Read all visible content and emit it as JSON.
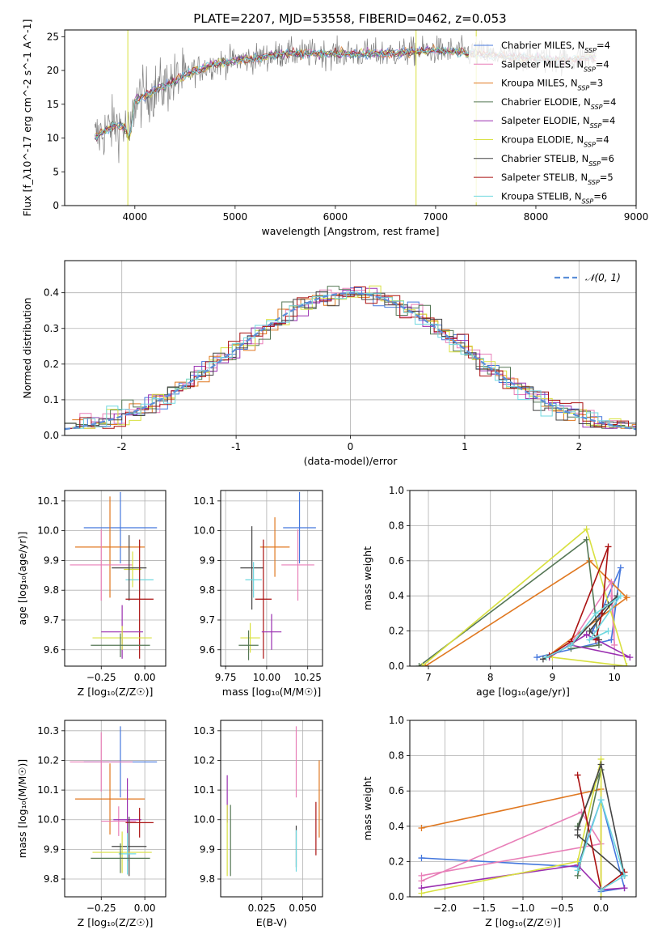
{
  "title": "PLATE=2207, MJD=53558, FIBERID=0462, z=0.053",
  "colors": {
    "chabrier_miles": "#4477dd",
    "salpeter_miles": "#e87fb8",
    "kroupa_miles": "#e07820",
    "chabrier_elodie": "#557755",
    "salpeter_elodie": "#9a2fb0",
    "kroupa_elodie": "#d8e040",
    "chabrier_stelib": "#444444",
    "salpeter_stelib": "#aa1111",
    "kroupa_stelib": "#70d8e0",
    "data": "#808080",
    "normal": "#5b8ed8"
  },
  "chart_data": [
    {
      "id": "spectrum",
      "type": "line",
      "xlabel": "wavelength [Angstrom, rest frame]",
      "ylabel": "Flux [f_λ10^-17 erg cm^-2 s^-1 A^-1]",
      "xlim": [
        3300,
        9000
      ],
      "ylim": [
        0,
        26
      ],
      "xticks": [
        4000,
        5000,
        6000,
        7000,
        8000,
        9000
      ],
      "yticks": [
        0,
        5,
        10,
        15,
        20,
        25
      ],
      "legend_position": "right",
      "legend": [
        {
          "key": "chabrier_miles",
          "label": "Chabrier MILES, N",
          "sub": "SSP",
          "n": "=4"
        },
        {
          "key": "salpeter_miles",
          "label": "Salpeter MILES, N",
          "sub": "SSP",
          "n": "=4"
        },
        {
          "key": "kroupa_miles",
          "label": "Kroupa MILES, N",
          "sub": "SSP",
          "n": "=3"
        },
        {
          "key": "chabrier_elodie",
          "label": "Chabrier ELODIE, N",
          "sub": "SSP",
          "n": "=4"
        },
        {
          "key": "salpeter_elodie",
          "label": "Salpeter ELODIE, N",
          "sub": "SSP",
          "n": "=4"
        },
        {
          "key": "kroupa_elodie",
          "label": "Kroupa ELODIE, N",
          "sub": "SSP",
          "n": "=4"
        },
        {
          "key": "chabrier_stelib",
          "label": "Chabrier STELIB, N",
          "sub": "SSP",
          "n": "=6"
        },
        {
          "key": "salpeter_stelib",
          "label": "Salpeter STELIB, N",
          "sub": "SSP",
          "n": "=5"
        },
        {
          "key": "kroupa_stelib",
          "label": "Kroupa STELIB, N",
          "sub": "SSP",
          "n": "=6"
        }
      ],
      "continuum": [
        [
          3600,
          10
        ],
        [
          3700,
          11
        ],
        [
          3800,
          12
        ],
        [
          3900,
          11.5
        ],
        [
          3950,
          10
        ],
        [
          4000,
          15.5
        ],
        [
          4200,
          17
        ],
        [
          4400,
          18.5
        ],
        [
          4600,
          20
        ],
        [
          4800,
          21
        ],
        [
          5000,
          21.5
        ],
        [
          5200,
          21.8
        ],
        [
          5500,
          22.5
        ],
        [
          6000,
          22.5
        ],
        [
          6500,
          22.5
        ],
        [
          7000,
          23
        ],
        [
          7400,
          22.5
        ],
        [
          7800,
          22
        ],
        [
          8200,
          21.5
        ],
        [
          8600,
          22
        ]
      ],
      "spikes": [
        [
          3930,
          0
        ],
        [
          6805,
          0
        ],
        [
          7405,
          0
        ]
      ]
    },
    {
      "id": "residuals",
      "type": "step",
      "xlabel": "(data-model)/error",
      "ylabel": "Normed distribution",
      "xlim": [
        -2.5,
        2.5
      ],
      "ylim": [
        0,
        0.49
      ],
      "xticks": [
        -2,
        -1,
        0,
        1,
        2
      ],
      "yticks": [
        0.0,
        0.1,
        0.2,
        0.3,
        0.4
      ],
      "legend": "𝒩(0, 1)",
      "legend_position": "top-right",
      "bin_width": 0.1
    },
    {
      "id": "age_vs_z",
      "type": "errorbar",
      "xlabel": "Z [log₁₀(Z/Z☉)]",
      "ylabel": "age  [log₁₀(age/yr)]",
      "xlim": [
        -0.46,
        0.12
      ],
      "ylim": [
        9.545,
        10.135
      ],
      "xticks": [
        -0.25,
        0.0
      ],
      "xtick_labels": [
        "−0.25",
        "0.00"
      ],
      "yticks": [
        9.6,
        9.7,
        9.8,
        9.9,
        10.0,
        10.1
      ],
      "points": [
        {
          "key": "chabrier_miles",
          "x": -0.14,
          "xerr": 0.21,
          "y": 10.01,
          "yerr": 0.12
        },
        {
          "key": "kroupa_miles",
          "x": -0.2,
          "xerr": 0.2,
          "y": 9.945,
          "yerr": 0.17
        },
        {
          "key": "salpeter_miles",
          "x": -0.25,
          "xerr": 0.18,
          "y": 9.885,
          "yerr": 0.12
        },
        {
          "key": "kroupa_elodie",
          "x": -0.07,
          "xerr": 0.05,
          "y": 9.87,
          "yerr": 0.06
        },
        {
          "key": "kroupa_stelib",
          "x": -0.03,
          "xerr": 0.08,
          "y": 9.835,
          "yerr": 0.05
        },
        {
          "key": "chabrier_stelib",
          "x": -0.09,
          "xerr": 0.1,
          "y": 9.875,
          "yerr": 0.11
        },
        {
          "key": "salpeter_stelib",
          "x": -0.03,
          "xerr": 0.08,
          "y": 9.77,
          "yerr": 0.2
        },
        {
          "key": "salpeter_elodie",
          "x": -0.13,
          "xerr": 0.12,
          "y": 9.66,
          "yerr": 0.09
        },
        {
          "key": "kroupa_elodie",
          "x": -0.13,
          "xerr": 0.17,
          "y": 9.64,
          "yerr": 0.04
        },
        {
          "key": "chabrier_elodie",
          "x": -0.14,
          "xerr": 0.17,
          "y": 9.615,
          "yerr": 0.04
        }
      ]
    },
    {
      "id": "age_vs_mass",
      "type": "errorbar",
      "xlabel": "mass [log₁₀(M/M☉)]",
      "ylabel": "",
      "xlim": [
        9.72,
        10.34
      ],
      "ylim": [
        9.545,
        10.135
      ],
      "xticks": [
        9.75,
        10.0,
        10.25
      ],
      "xtick_labels": [
        "9.75",
        "10.00",
        "10.25"
      ],
      "yticks": [
        9.6,
        9.7,
        9.8,
        9.9,
        10.0,
        10.1
      ],
      "points": [
        {
          "key": "chabrier_miles",
          "x": 10.2,
          "xerr": 0.1,
          "y": 10.01,
          "yerr": 0.12
        },
        {
          "key": "kroupa_miles",
          "x": 10.05,
          "xerr": 0.09,
          "y": 9.945,
          "yerr": 0.1
        },
        {
          "key": "salpeter_miles",
          "x": 10.19,
          "xerr": 0.1,
          "y": 9.885,
          "yerr": 0.12
        },
        {
          "key": "chabrier_stelib",
          "x": 9.91,
          "xerr": 0.07,
          "y": 9.875,
          "yerr": 0.14
        },
        {
          "key": "kroupa_stelib",
          "x": 9.92,
          "xerr": 0.05,
          "y": 9.835,
          "yerr": 0.06
        },
        {
          "key": "salpeter_stelib",
          "x": 9.98,
          "xerr": 0.05,
          "y": 9.77,
          "yerr": 0.2
        },
        {
          "key": "salpeter_elodie",
          "x": 10.03,
          "xerr": 0.06,
          "y": 9.66,
          "yerr": 0.06
        },
        {
          "key": "kroupa_elodie",
          "x": 9.9,
          "xerr": 0.06,
          "y": 9.64,
          "yerr": 0.05
        },
        {
          "key": "chabrier_elodie",
          "x": 9.89,
          "xerr": 0.06,
          "y": 9.615,
          "yerr": 0.05
        }
      ]
    },
    {
      "id": "weight_vs_age",
      "type": "line",
      "xlabel": "age  [log₁₀(age/yr)]",
      "ylabel": "mass weight",
      "xlim": [
        6.7,
        10.35
      ],
      "ylim": [
        0,
        1.0
      ],
      "xticks": [
        7,
        8,
        9,
        10
      ],
      "yticks": [
        0.0,
        0.2,
        0.4,
        0.6,
        0.8,
        1.0
      ],
      "series": [
        {
          "key": "chabrier_miles",
          "x": [
            8.75,
            9.95,
            10.1,
            9.65
          ],
          "y": [
            0.05,
            0.15,
            0.56,
            0.2
          ]
        },
        {
          "key": "kroupa_miles",
          "x": [
            6.95,
            9.6,
            10.2,
            8.9
          ],
          "y": [
            0.0,
            0.6,
            0.39,
            0.05
          ]
        },
        {
          "key": "salpeter_miles",
          "x": [
            9.3,
            9.95,
            10.0,
            9.95
          ],
          "y": [
            0.13,
            0.48,
            0.12,
            0.4
          ]
        },
        {
          "key": "chabrier_elodie",
          "x": [
            6.85,
            9.55,
            9.75,
            9.3
          ],
          "y": [
            0.0,
            0.72,
            0.12,
            0.1
          ]
        },
        {
          "key": "salpeter_elodie",
          "x": [
            8.95,
            9.55,
            10.25,
            9.3
          ],
          "y": [
            0.05,
            0.18,
            0.05,
            0.12
          ]
        },
        {
          "key": "kroupa_elodie",
          "x": [
            6.9,
            9.55,
            10.2,
            9.0
          ],
          "y": [
            0.0,
            0.78,
            0.0,
            0.05
          ]
        },
        {
          "key": "chabrier_stelib",
          "x": [
            8.85,
            9.3,
            9.9,
            10.05,
            9.6,
            9.75
          ],
          "y": [
            0.04,
            0.12,
            0.35,
            0.4,
            0.2,
            0.15
          ]
        },
        {
          "key": "salpeter_stelib",
          "x": [
            8.95,
            9.3,
            9.9,
            9.8,
            9.7
          ],
          "y": [
            0.06,
            0.14,
            0.68,
            0.3,
            0.15
          ]
        },
        {
          "key": "kroupa_stelib",
          "x": [
            8.9,
            9.3,
            9.7,
            10.1,
            9.6,
            9.9
          ],
          "y": [
            0.05,
            0.12,
            0.3,
            0.4,
            0.15,
            0.2
          ]
        }
      ]
    },
    {
      "id": "mass_vs_z",
      "type": "errorbar",
      "xlabel": "Z [log₁₀(Z/Z☉)]",
      "ylabel": "mass [log₁₀(M/M☉)]",
      "xlim": [
        -0.46,
        0.12
      ],
      "ylim": [
        9.74,
        10.335
      ],
      "xticks": [
        -0.25,
        0.0
      ],
      "xtick_labels": [
        "−0.25",
        "0.00"
      ],
      "yticks": [
        9.8,
        9.9,
        10.0,
        10.1,
        10.2,
        10.3
      ],
      "points": [
        {
          "key": "chabrier_miles",
          "x": -0.14,
          "xerr": 0.21,
          "y": 10.195,
          "yerr": 0.12
        },
        {
          "key": "salpeter_miles",
          "x": -0.25,
          "xerr": 0.18,
          "y": 10.195,
          "yerr": 0.1
        },
        {
          "key": "kroupa_miles",
          "x": -0.2,
          "xerr": 0.2,
          "y": 10.07,
          "yerr": 0.12
        },
        {
          "key": "salpeter_miles",
          "x": -0.15,
          "xerr": 0.1,
          "y": 9.995,
          "yerr": 0.05
        },
        {
          "key": "salpeter_elodie",
          "x": -0.1,
          "xerr": 0.08,
          "y": 10.0,
          "yerr": 0.14
        },
        {
          "key": "salpeter_stelib",
          "x": -0.03,
          "xerr": 0.08,
          "y": 9.99,
          "yerr": 0.05
        },
        {
          "key": "chabrier_stelib",
          "x": -0.09,
          "xerr": 0.1,
          "y": 9.91,
          "yerr": 0.1
        },
        {
          "key": "kroupa_elodie",
          "x": -0.13,
          "xerr": 0.17,
          "y": 9.89,
          "yerr": 0.07
        },
        {
          "key": "kroupa_stelib",
          "x": -0.1,
          "xerr": 0.05,
          "y": 9.885,
          "yerr": 0.07
        },
        {
          "key": "chabrier_elodie",
          "x": -0.14,
          "xerr": 0.17,
          "y": 9.87,
          "yerr": 0.05
        }
      ]
    },
    {
      "id": "mass_vs_ebv",
      "type": "errorbar",
      "xlabel": "E(B-V)",
      "ylabel": "",
      "xlim": [
        0.0,
        0.062
      ],
      "ylim": [
        9.74,
        10.335
      ],
      "xticks": [
        0.025,
        0.05
      ],
      "xtick_labels": [
        "0.025",
        "0.050"
      ],
      "yticks": [
        9.8,
        9.9,
        10.0,
        10.1,
        10.2,
        10.3
      ],
      "points": [
        {
          "key": "salpeter_miles",
          "x": 0.046,
          "y": 10.195,
          "yerr": 0.12
        },
        {
          "key": "kroupa_miles",
          "x": 0.06,
          "y": 10.07,
          "yerr": 0.13
        },
        {
          "key": "salpeter_elodie",
          "x": 0.004,
          "y": 10.07,
          "yerr": 0.08
        },
        {
          "key": "salpeter_stelib",
          "x": 0.058,
          "y": 9.97,
          "yerr": 0.09
        },
        {
          "key": "chabrier_stelib",
          "x": 0.046,
          "y": 9.91,
          "yerr": 0.07
        },
        {
          "key": "kroupa_stelib",
          "x": 0.046,
          "y": 9.895,
          "yerr": 0.07
        },
        {
          "key": "chabrier_elodie",
          "x": 0.006,
          "y": 9.93,
          "yerr": 0.12
        },
        {
          "key": "kroupa_elodie",
          "x": 0.004,
          "y": 9.93,
          "yerr": 0.12
        }
      ]
    },
    {
      "id": "weight_vs_z",
      "type": "line",
      "xlabel": "Z [log₁₀(Z/Z☉)]",
      "ylabel": "mass weight",
      "xlim": [
        -2.45,
        0.45
      ],
      "ylim": [
        0,
        1.0
      ],
      "xticks": [
        -2.0,
        -1.5,
        -1.0,
        -0.5,
        0.0
      ],
      "xtick_labels": [
        "−2.0",
        "−1.5",
        "−1.0",
        "−0.5",
        "0.0"
      ],
      "yticks": [
        0.0,
        0.2,
        0.4,
        0.6,
        0.8,
        1.0
      ],
      "series": [
        {
          "key": "chabrier_miles",
          "x": [
            -2.3,
            -0.3,
            0.0,
            0.3,
            0.0
          ],
          "y": [
            0.22,
            0.17,
            0.55,
            0.05,
            0.03
          ]
        },
        {
          "key": "kroupa_miles",
          "x": [
            -2.3,
            0.0,
            0.0
          ],
          "y": [
            0.39,
            0.61,
            0.04
          ]
        },
        {
          "key": "salpeter_miles",
          "x": [
            -2.3,
            -0.25,
            0.0,
            -2.3
          ],
          "y": [
            0.09,
            0.48,
            0.3,
            0.12
          ]
        },
        {
          "key": "chabrier_elodie",
          "x": [
            -0.3,
            0.0,
            -0.3
          ],
          "y": [
            0.12,
            0.72,
            0.4
          ]
        },
        {
          "key": "salpeter_elodie",
          "x": [
            -2.3,
            -0.3,
            0.0,
            0.3
          ],
          "y": [
            0.05,
            0.18,
            0.04,
            0.05
          ]
        },
        {
          "key": "kroupa_elodie",
          "x": [
            -2.3,
            -0.3,
            0.0,
            0.0
          ],
          "y": [
            0.02,
            0.2,
            0.78,
            0.0
          ]
        },
        {
          "key": "chabrier_stelib",
          "x": [
            -0.3,
            0.0,
            0.3,
            -0.3
          ],
          "y": [
            0.38,
            0.75,
            0.12,
            0.35
          ]
        },
        {
          "key": "salpeter_stelib",
          "x": [
            -0.3,
            0.0,
            0.3
          ],
          "y": [
            0.69,
            0.04,
            0.14
          ]
        },
        {
          "key": "kroupa_stelib",
          "x": [
            -0.3,
            0.0,
            0.3,
            0.0
          ],
          "y": [
            0.15,
            0.55,
            0.12,
            0.04
          ]
        }
      ]
    }
  ]
}
